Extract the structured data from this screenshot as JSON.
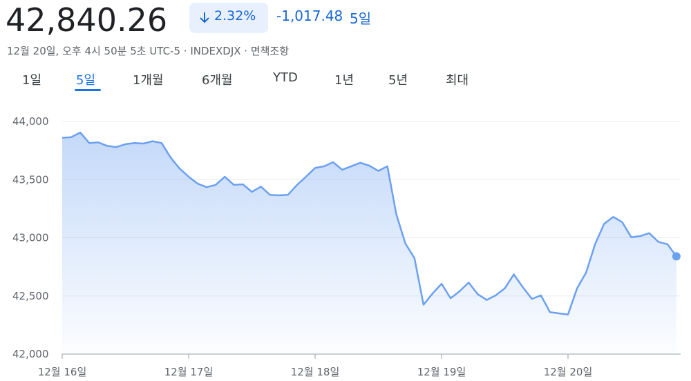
{
  "header": {
    "price": "42,840.26",
    "change_percent": "2.32%",
    "change": "-1,017.48",
    "period": "5일",
    "subtitle": "12월 20일, 오후 4시 50분 5초 UTC-5 · INDEXDJX · 면책조항"
  },
  "tabs": {
    "items": [
      "1일",
      "5일",
      "1개월",
      "6개월",
      "YTD",
      "1년",
      "5년",
      "최대"
    ],
    "selected": 1
  },
  "chart_data": {
    "type": "area",
    "color": "#6ba0f0",
    "grid": true,
    "categories": [
      "12월 16일",
      null,
      null,
      null,
      null,
      null,
      null,
      null,
      null,
      null,
      null,
      null,
      null,
      null,
      "12월 17일",
      null,
      null,
      null,
      null,
      null,
      null,
      null,
      null,
      null,
      null,
      null,
      null,
      null,
      "12월 18일",
      null,
      null,
      null,
      null,
      null,
      null,
      null,
      null,
      null,
      null,
      null,
      null,
      null,
      "12월 19일",
      null,
      null,
      null,
      null,
      null,
      null,
      null,
      null,
      null,
      null,
      null,
      null,
      null,
      "12월 20일",
      null,
      null,
      null,
      null,
      null,
      null,
      null,
      null,
      null,
      null,
      null,
      null
    ],
    "values": [
      43860,
      43865,
      43905,
      43815,
      43820,
      43790,
      43780,
      43805,
      43815,
      43810,
      43830,
      43815,
      43690,
      43595,
      43525,
      43465,
      43435,
      43455,
      43525,
      43455,
      43460,
      43395,
      43440,
      43370,
      43365,
      43370,
      43455,
      43525,
      43600,
      43615,
      43650,
      43585,
      43615,
      43645,
      43620,
      43575,
      43615,
      43200,
      42950,
      42825,
      42425,
      42520,
      42605,
      42480,
      42540,
      42615,
      42515,
      42465,
      42505,
      42565,
      42685,
      42575,
      42475,
      42505,
      42360,
      42350,
      42340,
      42565,
      42700,
      42945,
      43120,
      43180,
      43135,
      43005,
      43015,
      43040,
      42965,
      42945,
      42840.26
    ],
    "ylim": [
      42000,
      44000
    ],
    "yticks": [
      {
        "value": 42000,
        "label": "42,000"
      },
      {
        "value": 42500,
        "label": "42,500"
      },
      {
        "value": 43000,
        "label": "43,000"
      },
      {
        "value": 43500,
        "label": "43,500"
      },
      {
        "value": 44000,
        "label": "44,000"
      }
    ]
  }
}
